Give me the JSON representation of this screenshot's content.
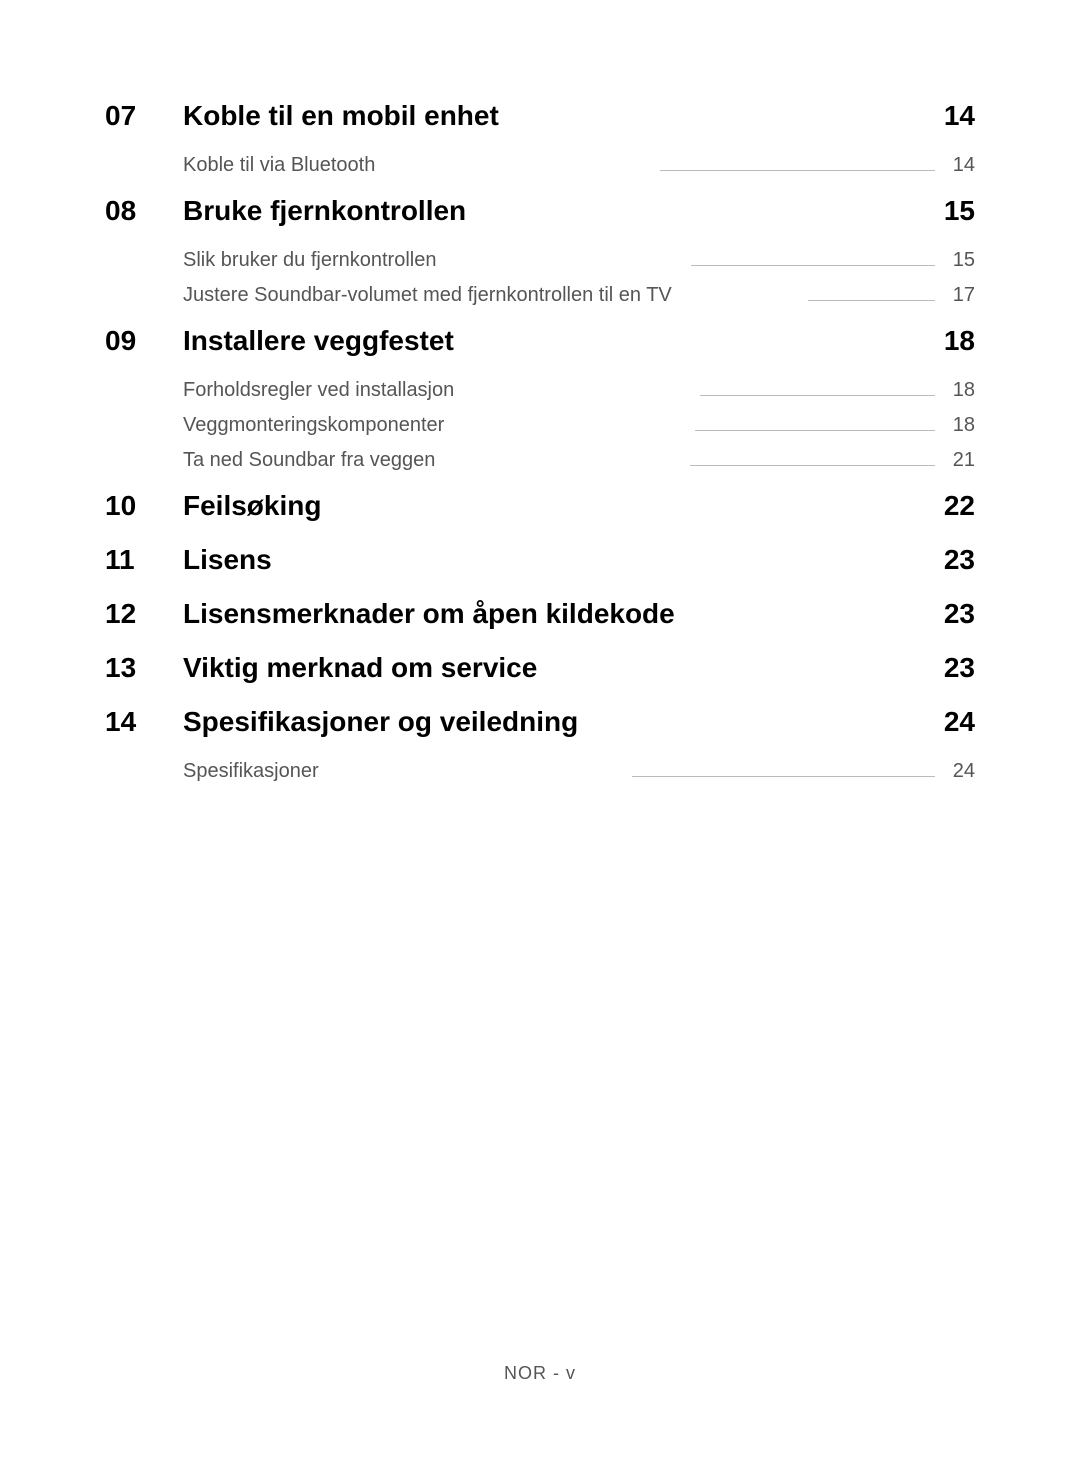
{
  "toc": {
    "sections": [
      {
        "number": "07",
        "title": "Koble til en mobil enhet",
        "page": "14",
        "subs": [
          {
            "title": "Koble til via Bluetooth",
            "page": "14",
            "line": true
          }
        ]
      },
      {
        "number": "08",
        "title": "Bruke fjernkontrollen",
        "page": "15",
        "subs": [
          {
            "title": "Slik bruker du fjernkontrollen",
            "page": "15",
            "line": true
          },
          {
            "title": "Justere Soundbar-volumet med fjernkontrollen til en TV",
            "page": "17",
            "line": true
          }
        ]
      },
      {
        "number": "09",
        "title": "Installere veggfestet",
        "page": "18",
        "subs": [
          {
            "title": "Forholdsregler ved installasjon",
            "page": "18",
            "line": true
          },
          {
            "title": "Veggmonteringskomponenter",
            "page": "18",
            "line": true
          },
          {
            "title": "Ta ned Soundbar fra veggen",
            "page": "21",
            "line": true
          }
        ]
      },
      {
        "number": "10",
        "title": "Feilsøking",
        "page": "22",
        "subs": []
      },
      {
        "number": "11",
        "title": "Lisens",
        "page": "23",
        "subs": []
      },
      {
        "number": "12",
        "title": "Lisensmerknader om åpen kildekode",
        "page": "23",
        "subs": []
      },
      {
        "number": "13",
        "title": "Viktig merknad om service",
        "page": "23",
        "subs": []
      },
      {
        "number": "14",
        "title": "Spesifikasjoner og veiledning",
        "page": "24",
        "subs": [
          {
            "title": "Spesifikasjoner",
            "page": "24",
            "line": true
          }
        ]
      }
    ]
  },
  "footer": "NOR - v"
}
